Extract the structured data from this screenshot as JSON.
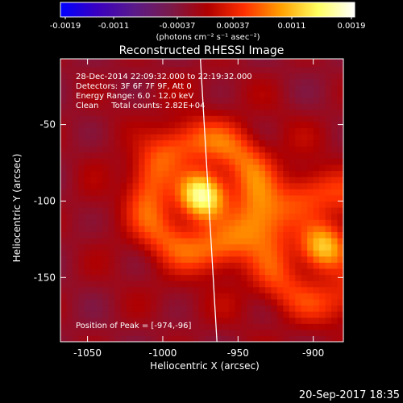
{
  "colorbar": {
    "ticks": [
      "-0.0019",
      "-0.0011",
      "-0.00037",
      "0.00037",
      "0.0011",
      "0.0019"
    ],
    "units": "(photons cm⁻² s⁻¹ asec⁻²)",
    "range": [
      -0.0019,
      0.0019
    ],
    "scale": [
      "#0000ff",
      "#3a00c0",
      "#5a1a8a",
      "#7a1a4a",
      "#b00000",
      "#ff3000",
      "#ffa000",
      "#ffff60",
      "#ffffff"
    ]
  },
  "chart_data": {
    "type": "heatmap",
    "title": "Reconstructed RHESSI Image",
    "xlabel": "Heliocentric X (arcsec)",
    "ylabel": "Heliocentric Y (arcsec)",
    "xlim": [
      -1068,
      -880
    ],
    "ylim": [
      -192,
      -7
    ],
    "xticks": [
      -1050,
      -1000,
      -950,
      -900
    ],
    "yticks": [
      -50,
      -100,
      -150
    ],
    "info": {
      "time": "28-Dec-2014 22:09:32.000 to 22:19:32.000",
      "detectors": "Detectors: 3F 6F 7F 9F, Att 0",
      "energy": "Energy Range: 6.0 - 12.0 keV",
      "method": "Clean     Total counts: 2.82E+04",
      "peak": "Position of Peak = [-974,-96]"
    },
    "sources": [
      {
        "x": -974,
        "y": -96,
        "peak": 0.0019
      },
      {
        "x": -893,
        "y": -130,
        "peak": 0.0014
      }
    ],
    "limb_line": {
      "x": [
        -975,
        -964
      ],
      "y": [
        -7,
        -192
      ]
    }
  },
  "footer": {
    "timestamp": "20-Sep-2017 18:35"
  }
}
